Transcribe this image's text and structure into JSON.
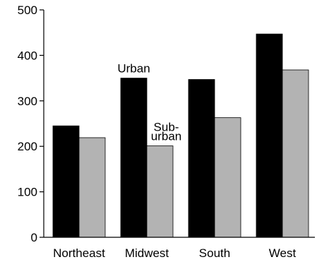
{
  "chart_data": {
    "type": "bar",
    "title": "",
    "xlabel": "",
    "ylabel": "",
    "categories": [
      "Northeast",
      "Midwest",
      "South",
      "West"
    ],
    "series": [
      {
        "values": [
          245,
          350,
          347,
          447
        ],
        "color": "#000000"
      },
      {
        "values": [
          219,
          201,
          263,
          368
        ],
        "color": "#b3b3b3"
      }
    ],
    "ylim": [
      0,
      500
    ],
    "yticks": [
      0,
      100,
      200,
      300,
      400,
      500
    ],
    "grid": false,
    "legend": "none",
    "annotations": [
      {
        "lines": [
          "Urban"
        ],
        "category_index": 1,
        "series_index": 0
      },
      {
        "lines": [
          "Sub-",
          "urban"
        ],
        "category_index": 1,
        "series_index": 1
      }
    ]
  }
}
